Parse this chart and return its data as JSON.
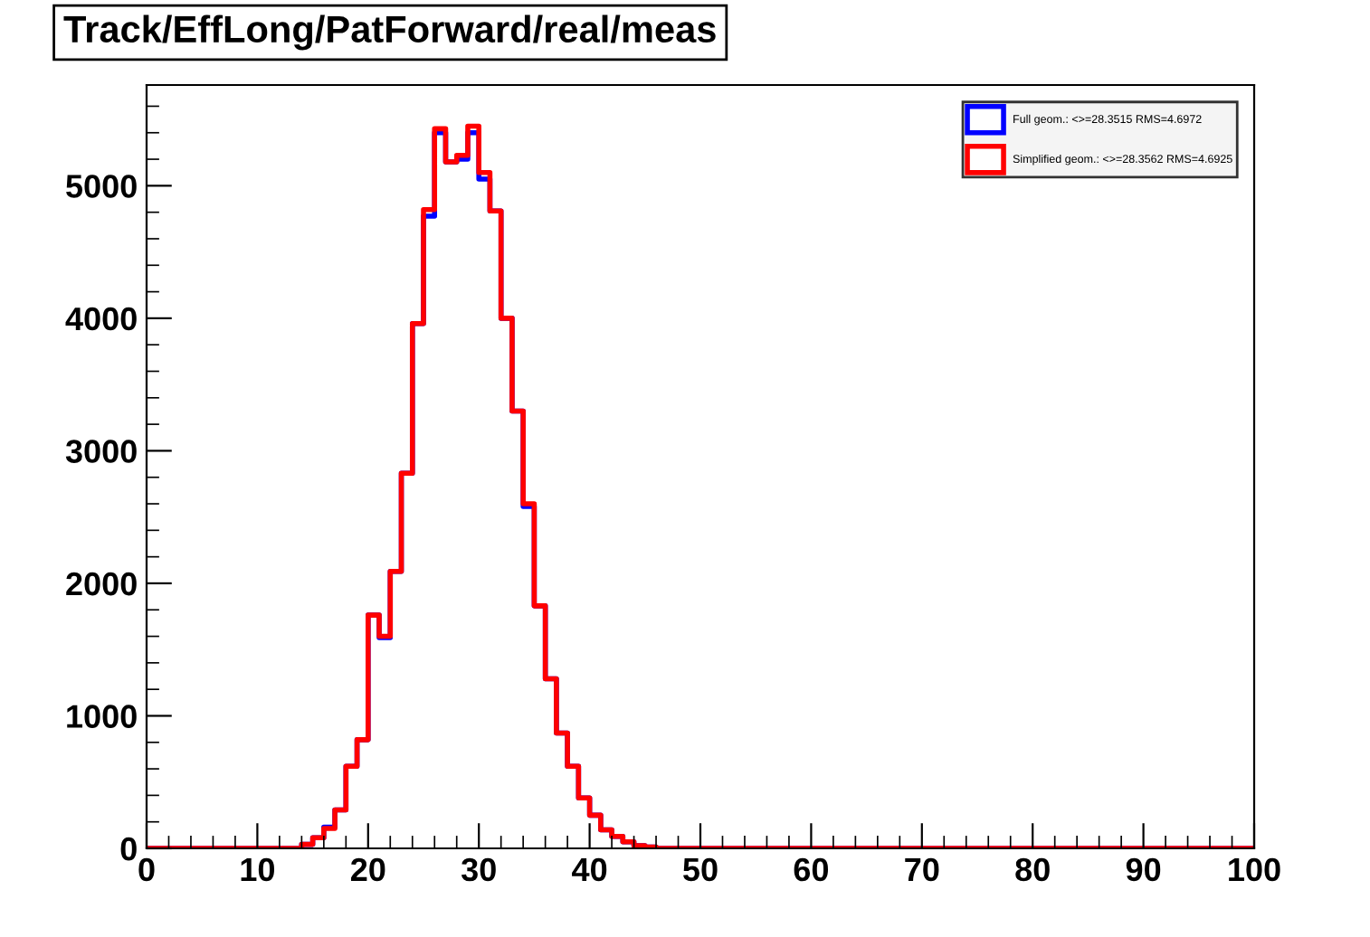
{
  "chart_data": {
    "type": "histogram",
    "title": "Track/EffLong/PatForward/real/meas",
    "bins": [
      0,
      1,
      2,
      3,
      4,
      5,
      6,
      7,
      8,
      9,
      10,
      11,
      12,
      13,
      14,
      15,
      16,
      17,
      18,
      19,
      20,
      21,
      22,
      23,
      24,
      25,
      26,
      27,
      28,
      29,
      30,
      31,
      32,
      33,
      34,
      35,
      36,
      37,
      38,
      39,
      40,
      41,
      42,
      43,
      44,
      45,
      46,
      47,
      48,
      49,
      50,
      51,
      52,
      53,
      54,
      55,
      56,
      57,
      58,
      59,
      60,
      61,
      62,
      63,
      64,
      65,
      66,
      67,
      68,
      69,
      70,
      71,
      72,
      73,
      74,
      75,
      76,
      77,
      78,
      79,
      80,
      81,
      82,
      83,
      84,
      85,
      86,
      87,
      88,
      89,
      90,
      91,
      92,
      93,
      94,
      95,
      96,
      97,
      98,
      99,
      100
    ],
    "series": [
      {
        "name": "Full geom.: <>=28.3515 RMS=4.6972",
        "color": "#0000ff",
        "values": [
          0,
          0,
          0,
          0,
          0,
          0,
          0,
          0,
          0,
          0,
          0,
          0,
          0,
          0,
          30,
          80,
          160,
          290,
          620,
          820,
          1760,
          1590,
          2090,
          2830,
          3960,
          4770,
          5400,
          5180,
          5200,
          5400,
          5050,
          4810,
          4000,
          3300,
          2580,
          1830,
          1280,
          870,
          620,
          380,
          250,
          140,
          90,
          50,
          20,
          10,
          0,
          0,
          0,
          0,
          0,
          0,
          0,
          0,
          0,
          0,
          0,
          0,
          0,
          0,
          0,
          0,
          0,
          0,
          0,
          0,
          0,
          0,
          0,
          0,
          0,
          0,
          0,
          0,
          0,
          0,
          0,
          0,
          0,
          0,
          0,
          0,
          0,
          0,
          0,
          0,
          0,
          0,
          0,
          0,
          0,
          0,
          0,
          0,
          0,
          0,
          0,
          0,
          0,
          0
        ]
      },
      {
        "name": "Simplified geom.: <>=28.3562 RMS=4.6925",
        "color": "#ff0000",
        "values": [
          0,
          0,
          0,
          0,
          0,
          0,
          0,
          0,
          0,
          0,
          0,
          0,
          0,
          0,
          30,
          80,
          150,
          290,
          620,
          820,
          1760,
          1600,
          2090,
          2830,
          3960,
          4820,
          5430,
          5180,
          5230,
          5450,
          5100,
          4810,
          4000,
          3300,
          2600,
          1830,
          1280,
          870,
          620,
          380,
          250,
          140,
          90,
          50,
          20,
          10,
          0,
          0,
          0,
          0,
          0,
          0,
          0,
          0,
          0,
          0,
          0,
          0,
          0,
          0,
          0,
          0,
          0,
          0,
          0,
          0,
          0,
          0,
          0,
          0,
          0,
          0,
          0,
          0,
          0,
          0,
          0,
          0,
          0,
          0,
          0,
          0,
          0,
          0,
          0,
          0,
          0,
          0,
          0,
          0,
          0,
          0,
          0,
          0,
          0,
          0,
          0,
          0,
          0,
          0
        ]
      }
    ],
    "xlim": [
      0,
      100
    ],
    "xticks": [
      0,
      10,
      20,
      30,
      40,
      50,
      60,
      70,
      80,
      90,
      100
    ],
    "ylim": [
      0,
      5760
    ],
    "yticks": [
      0,
      1000,
      2000,
      3000,
      4000,
      5000
    ],
    "legend": "top right",
    "grid": false
  }
}
